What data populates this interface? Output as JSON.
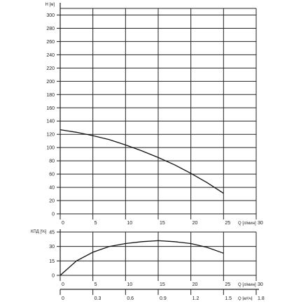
{
  "chart_data": [
    {
      "type": "line",
      "ylabel": "H [м]",
      "xlabel": "Q [л/мин]",
      "xlim": [
        0,
        30
      ],
      "ylim": [
        0,
        310
      ],
      "x_ticks": [
        "0",
        "5",
        "10",
        "15",
        "20",
        "25",
        "30"
      ],
      "y_ticks": [
        "0",
        "20",
        "40",
        "60",
        "80",
        "100",
        "120",
        "140",
        "160",
        "180",
        "200",
        "220",
        "240",
        "260",
        "280",
        "300"
      ],
      "grid": true,
      "series": [
        {
          "x": [
            0,
            2.5,
            5,
            7.5,
            10,
            12.5,
            15,
            17.5,
            20,
            22.5,
            25
          ],
          "y": [
            127,
            123,
            118,
            112,
            104,
            95,
            85,
            74,
            61,
            47,
            31
          ]
        }
      ]
    },
    {
      "type": "line",
      "ylabel": "КПД [%]",
      "xlabel": "Q [л/мин]",
      "xlim": [
        0,
        30
      ],
      "ylim": [
        0,
        45
      ],
      "x_ticks": [
        "0",
        "5",
        "10",
        "15",
        "20",
        "25",
        "30"
      ],
      "y_ticks": [
        "0",
        "15",
        "30",
        "45"
      ],
      "grid": true,
      "series": [
        {
          "x": [
            0,
            2.5,
            5,
            7.5,
            10,
            12.5,
            15,
            17.5,
            20,
            22.5,
            25
          ],
          "y": [
            0,
            15,
            24,
            30,
            33,
            35,
            36,
            35,
            33,
            29,
            23
          ]
        }
      ]
    },
    {
      "type": "axis",
      "xlabel": "Q [м³/ч]",
      "xlim": [
        0,
        1.8
      ],
      "x_ticks": [
        "0",
        "0.3",
        "0.6",
        "0.9",
        "1.2",
        "1.5",
        "1.8"
      ]
    }
  ],
  "colors": {
    "grid": "#222222",
    "curve": "#111111",
    "background": "#ffffff"
  }
}
